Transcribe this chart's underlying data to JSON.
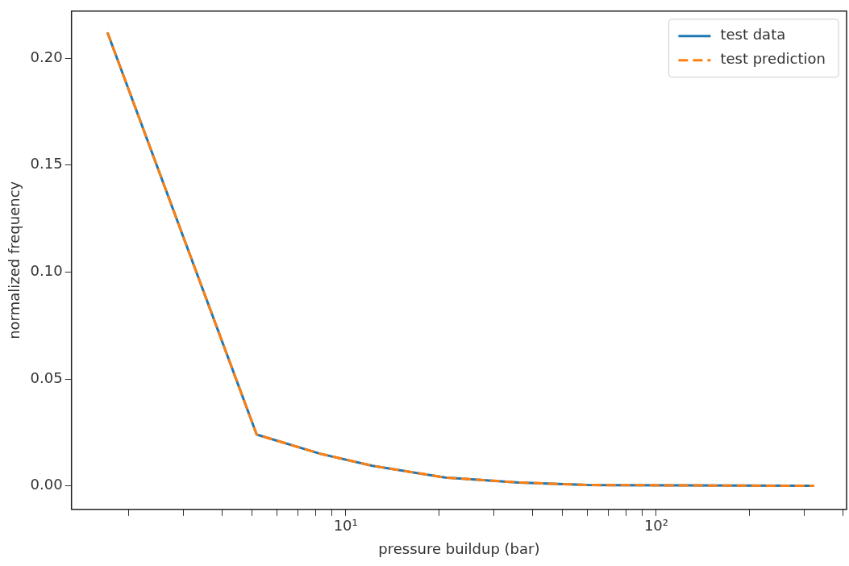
{
  "chart_data": {
    "type": "line",
    "xlabel": "pressure buildup (bar)",
    "ylabel": "normalized frequency",
    "log": "x",
    "xlim": [
      1.31,
      410
    ],
    "ylim": [
      -0.011,
      0.222
    ],
    "xticks": [
      {
        "value": 2,
        "label": null
      },
      {
        "value": 3,
        "label": null
      },
      {
        "value": 4,
        "label": null
      },
      {
        "value": 5,
        "label": null
      },
      {
        "value": 6,
        "label": null
      },
      {
        "value": 7,
        "label": null
      },
      {
        "value": 8,
        "label": null
      },
      {
        "value": 9,
        "label": null
      },
      {
        "value": 10,
        "label": "10¹"
      },
      {
        "value": 20,
        "label": null
      },
      {
        "value": 30,
        "label": null
      },
      {
        "value": 40,
        "label": null
      },
      {
        "value": 50,
        "label": null
      },
      {
        "value": 60,
        "label": null
      },
      {
        "value": 70,
        "label": null
      },
      {
        "value": 80,
        "label": null
      },
      {
        "value": 90,
        "label": null
      },
      {
        "value": 100,
        "label": "10²"
      },
      {
        "value": 200,
        "label": null
      },
      {
        "value": 300,
        "label": null
      },
      {
        "value": 400,
        "label": null
      }
    ],
    "yticks": [
      {
        "value": 0,
        "label": "0.00"
      },
      {
        "value": 0.05,
        "label": "0.05"
      },
      {
        "value": 0.1,
        "label": "0.10"
      },
      {
        "value": 0.15,
        "label": "0.15"
      },
      {
        "value": 0.2,
        "label": "0.20"
      }
    ],
    "x": [
      1.71,
      5.17,
      8.3,
      12.2,
      20.9,
      36,
      60,
      322
    ],
    "series": [
      {
        "name": "test data",
        "color": "#1f77b4",
        "line_style": "solid",
        "values": [
          0.212,
          0.024,
          0.015,
          0.0094,
          0.0039,
          0.0016,
          0.0004,
          0
        ]
      },
      {
        "name": "test prediction",
        "color": "#ff7f0e",
        "line_style": "dashed",
        "values": [
          0.212,
          0.024,
          0.015,
          0.0094,
          0.0039,
          0.0016,
          0.0004,
          0
        ]
      }
    ],
    "legend": "top right",
    "grid": false,
    "marker": "none"
  }
}
